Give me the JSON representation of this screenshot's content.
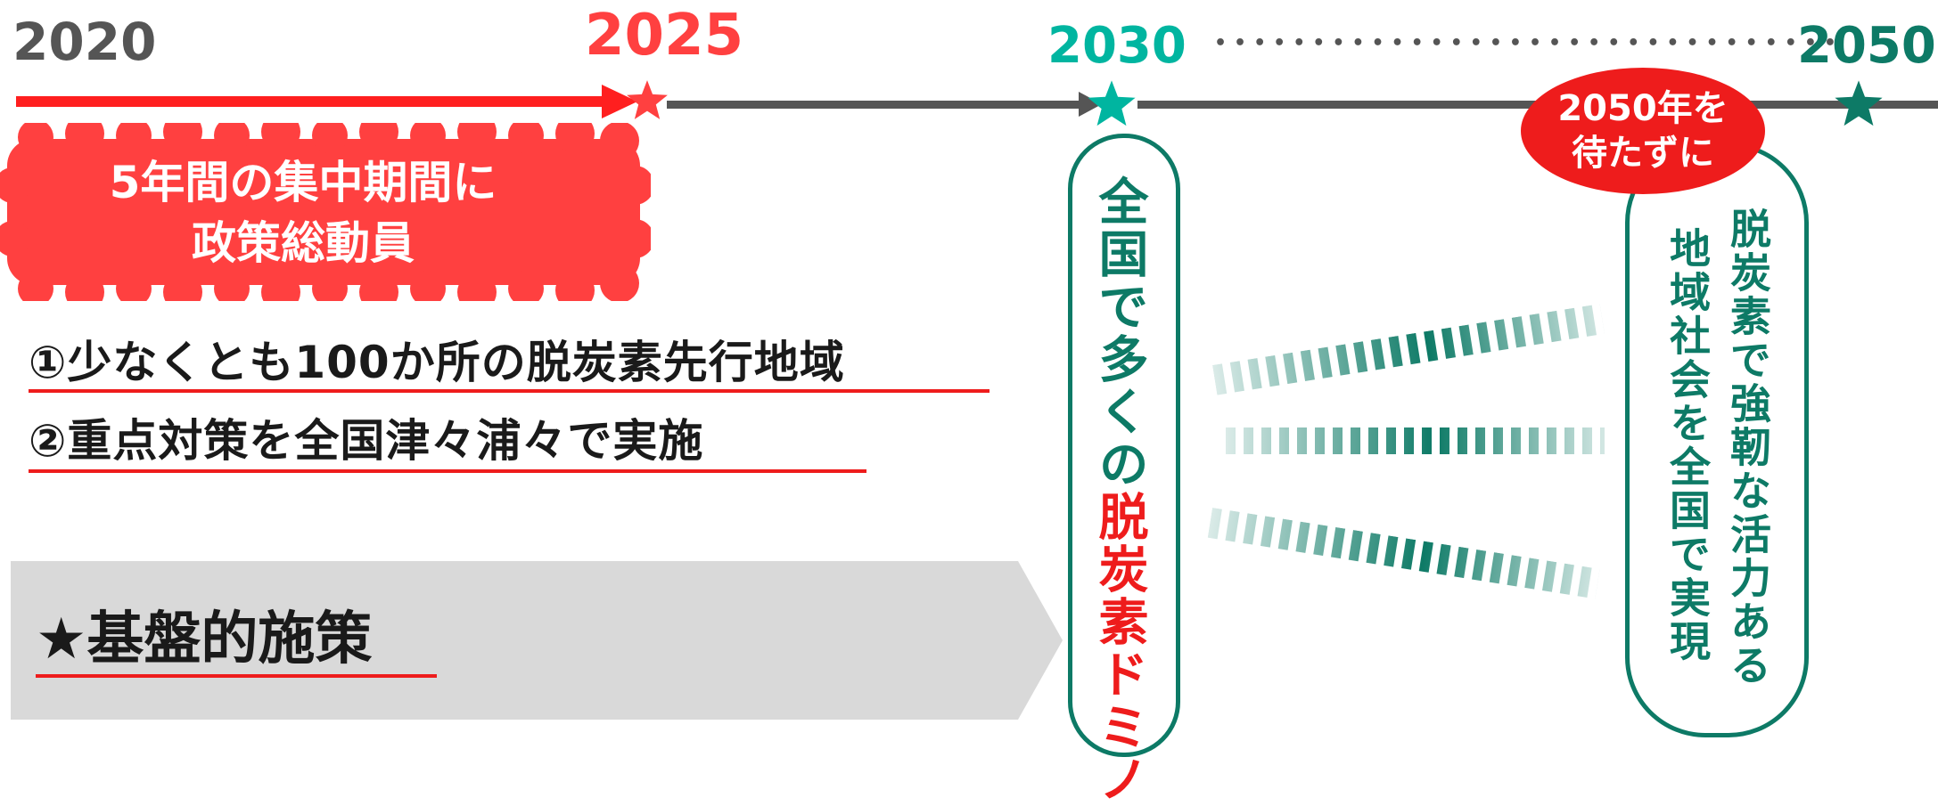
{
  "timeline": {
    "years": [
      "2020",
      "2025",
      "2030",
      "2050"
    ],
    "dots": "••••••••••••••••••••••••••••••••"
  },
  "burst": {
    "line1": "5年間の集中期間に",
    "line2": "政策総動員"
  },
  "bullets": [
    "①少なくとも100か所の脱炭素先行地域",
    "②重点対策を全国津々浦々で実施"
  ],
  "foundation": {
    "label": "★基盤的施策"
  },
  "domino_box": {
    "prefix": "全国で多くの",
    "highlight": "脱炭素ドミノ"
  },
  "badge": {
    "line1": "2050年を",
    "line2": "待たずに"
  },
  "goal_box": {
    "col1": "脱炭素で強靭な活力ある",
    "col2": "地域社会を全国で実現"
  },
  "colors": {
    "red": "#ff4040",
    "bright_red": "#ee1c1c",
    "teal": "#00b5a0",
    "dark_green": "#0d7a66",
    "gray_dark": "#555555",
    "gray_light": "#d9d9d9"
  },
  "icons": [
    "star-icon",
    "arrow-head-icon"
  ]
}
